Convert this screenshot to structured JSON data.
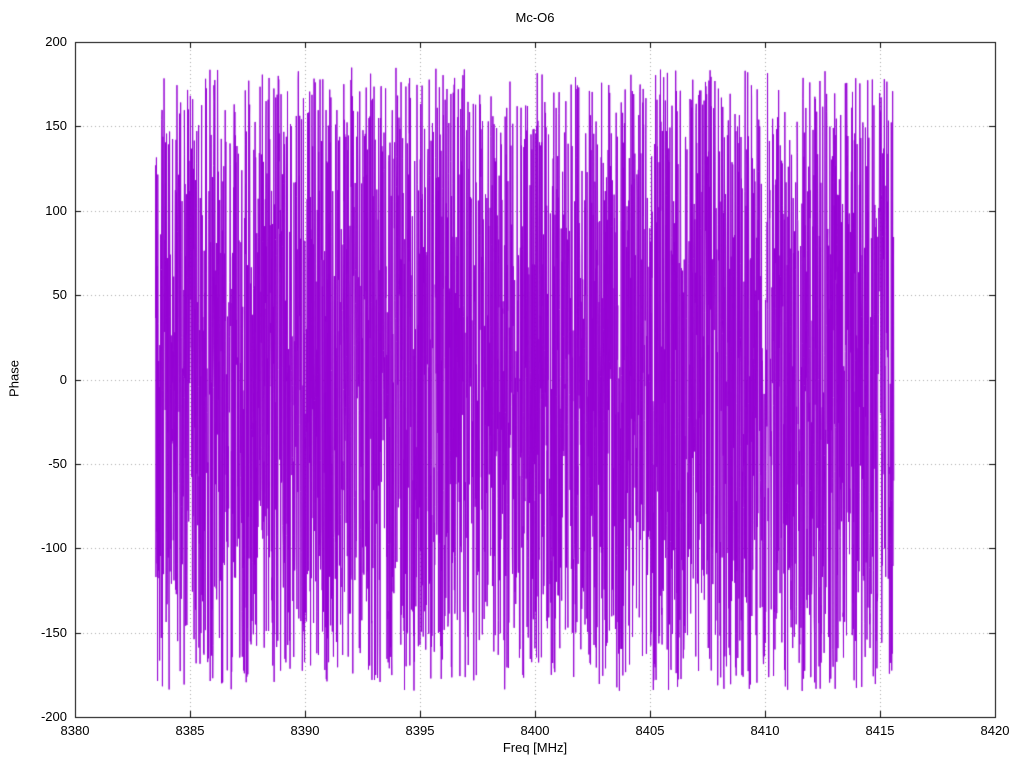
{
  "chart_data": {
    "type": "line",
    "title": "Mc-O6",
    "xlabel": "Freq [MHz]",
    "ylabel": "Phase",
    "xlim": [
      8380,
      8420
    ],
    "ylim": [
      -200,
      200
    ],
    "x_ticks": [
      8380,
      8385,
      8390,
      8395,
      8400,
      8405,
      8410,
      8415,
      8420
    ],
    "y_ticks": [
      -200,
      -150,
      -100,
      -50,
      0,
      50,
      100,
      150,
      200
    ],
    "grid": true,
    "grid_style": "dotted",
    "grid_color": "#a8a8a8",
    "border_color": "#000000",
    "legend": "none",
    "series": [
      {
        "name": "phase",
        "color": "#9400d3",
        "x_start": 8383.5,
        "x_end": 8415.6,
        "y_min": -183,
        "y_max": 183,
        "points": 3200,
        "pattern": "uniform-random-phase-noise",
        "seed": 42,
        "description": "Dense noise-like interferometric phase vs frequency; values wrap uniformly across roughly -180 to +180 degrees over the whole band 8383.5-8415.6 MHz"
      }
    ]
  }
}
